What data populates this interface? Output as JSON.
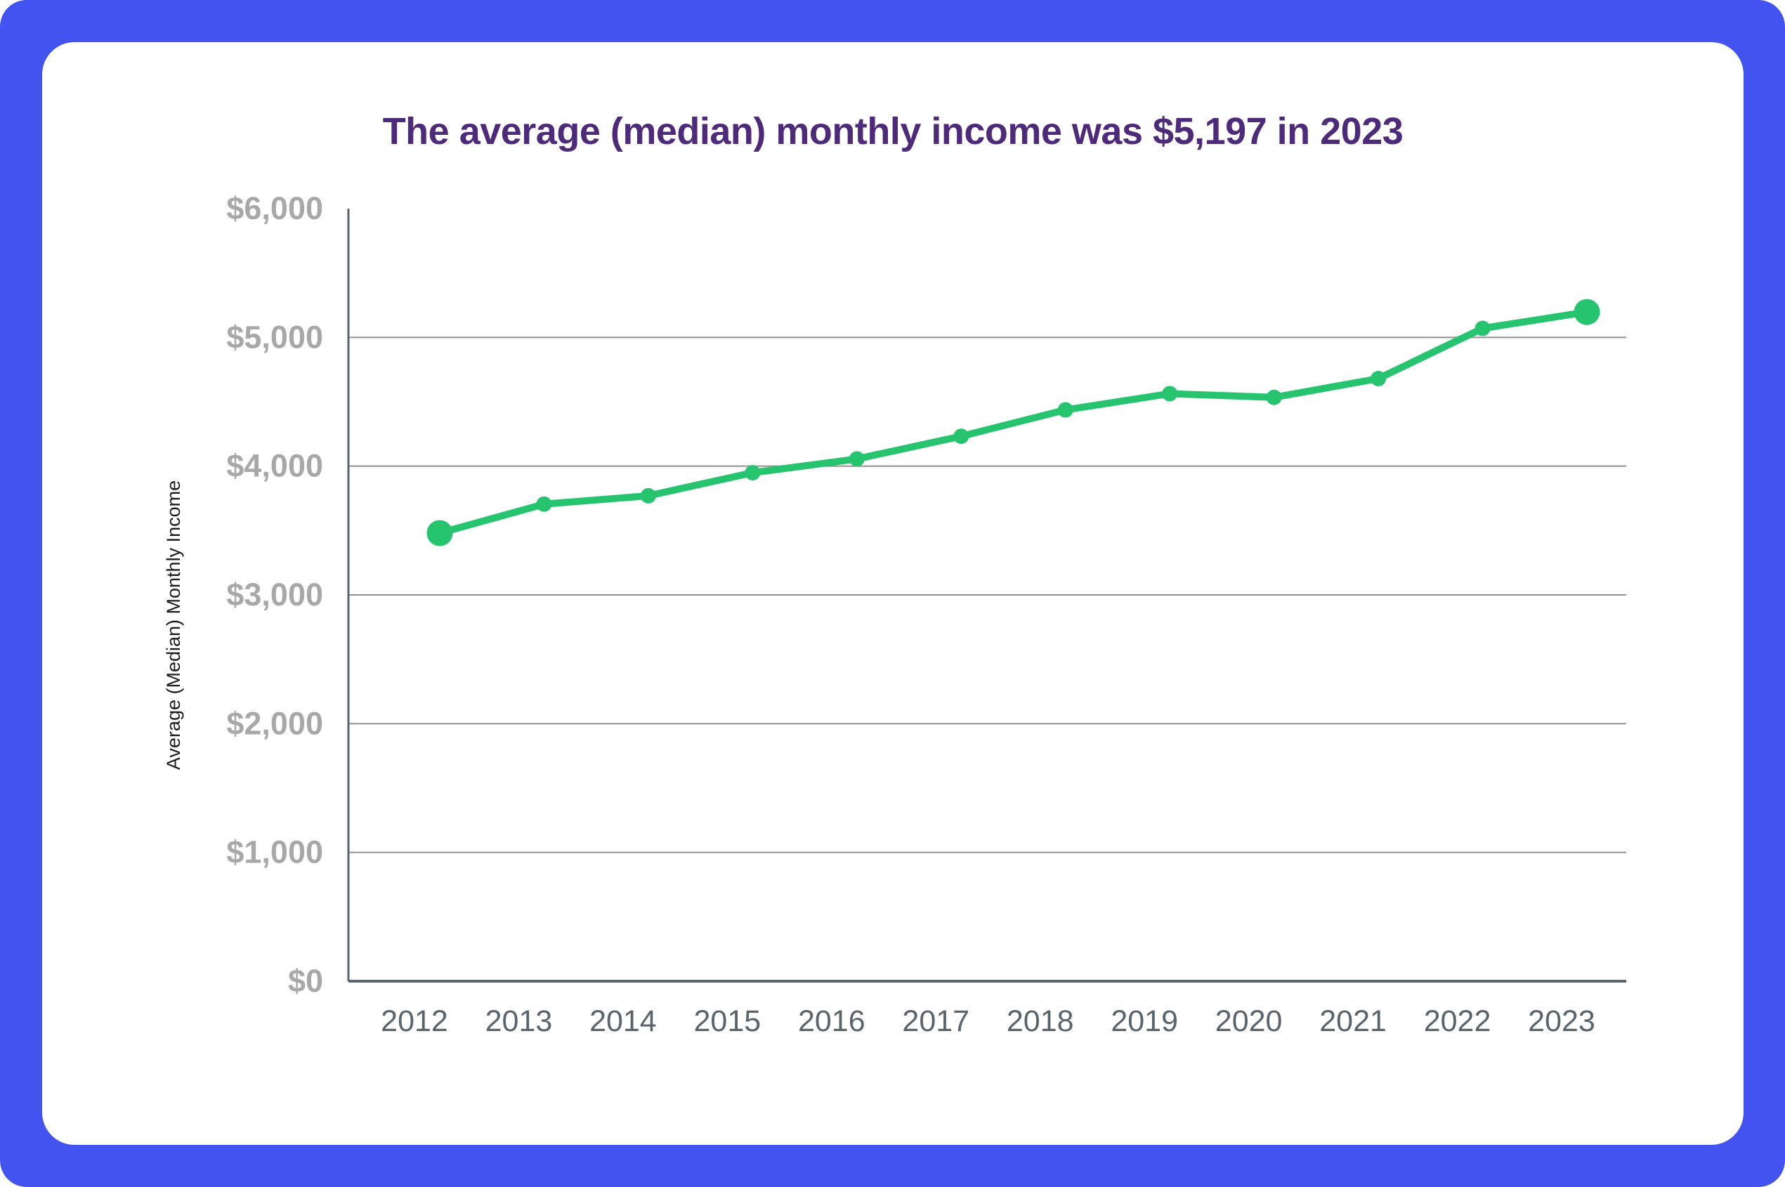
{
  "frame": {
    "border_color": "#4353f0",
    "card_color": "#ffffff"
  },
  "chart_data": {
    "type": "line",
    "title": "The average (median) monthly income was $5,197 in 2023",
    "title_color": "#4e2a7a",
    "categories": [
      "2012",
      "2013",
      "2014",
      "2015",
      "2016",
      "2017",
      "2018",
      "2019",
      "2020",
      "2021",
      "2022",
      "2023"
    ],
    "series": [
      {
        "name": "Average (Median) Monthly Income",
        "color": "#27c46f",
        "values": [
          3480,
          3705,
          3770,
          3949,
          4056,
          4232,
          4437,
          4563,
          4534,
          4680,
          5070,
          5197
        ]
      }
    ],
    "xlabel": "",
    "ylabel": "Average (Median) Monthly Income",
    "ylim": [
      0,
      6000
    ],
    "ytick_step": 1000,
    "ytick_labels": [
      "$0",
      "$1,000",
      "$2,000",
      "$3,000",
      "$4,000",
      "$5,000",
      "$6,000"
    ],
    "grid": "horizontal",
    "legend": "none",
    "highlighted_points": [
      "2012",
      "2023"
    ],
    "axis_color": "#5b656d",
    "gridline_color": "#909090"
  }
}
